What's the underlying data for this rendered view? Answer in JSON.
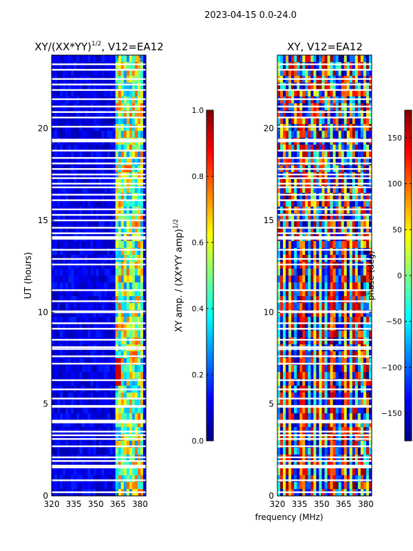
{
  "figure": {
    "suptitle": "2023-04-15 0.0-24.0"
  },
  "colors": {
    "flag": "#ffffff",
    "frame": "#000000",
    "jet": [
      "#00007f",
      "#0000ff",
      "#007fff",
      "#00ffff",
      "#7fff7f",
      "#ffff00",
      "#ff7f00",
      "#ff0000",
      "#7f0000"
    ]
  },
  "chart_data": [
    {
      "type": "heatmap",
      "title_main": "XY/(XX*YY)",
      "title_sup": "1/2",
      "title_rest": ", V12=EA12",
      "xlabel": "",
      "ylabel": "UT (hours)",
      "xlim": [
        320,
        384
      ],
      "ylim": [
        0,
        24
      ],
      "xticks": [
        320,
        335,
        350,
        365,
        380
      ],
      "yticks": [
        0,
        5,
        10,
        15,
        20
      ],
      "colorbar": {
        "label_main": "XY amp. / (XX*YY amp)",
        "label_sup": "1/2",
        "range": [
          0.0,
          1.0
        ],
        "ticks": [
          "0.0",
          "0.2",
          "0.4",
          "0.6",
          "0.8",
          "1.0"
        ]
      },
      "description_values": {
        "background_level": 0.05,
        "bright_band_mhz": [
          363,
          382
        ],
        "bright_band_level": 0.55
      }
    },
    {
      "type": "heatmap",
      "title": "XY, V12=EA12",
      "xlabel": "frequency (MHz)",
      "ylabel": "",
      "xlim": [
        320,
        384
      ],
      "ylim": [
        0,
        24
      ],
      "xticks": [
        320,
        335,
        350,
        365,
        380
      ],
      "yticks": [
        0,
        5,
        10,
        15,
        20
      ],
      "colorbar": {
        "label": "phase (deg)",
        "range": [
          -180,
          180
        ],
        "ticks": [
          "−150",
          "−100",
          "−50",
          "0",
          "50",
          "100",
          "150"
        ]
      }
    }
  ],
  "flagged_hours": [
    0.2,
    0.85,
    1.55,
    1.6,
    1.65,
    1.9,
    2.1,
    2.7,
    3.1,
    3.3,
    3.5,
    4.0,
    4.05,
    4.1,
    4.85,
    4.9,
    5.3,
    5.8,
    6.3,
    7.2,
    7.6,
    8.0,
    8.1,
    8.5,
    9.1,
    9.4,
    10.0,
    10.05,
    10.6,
    11.2,
    12.6,
    12.9,
    13.4,
    14.0,
    14.05,
    14.1,
    14.3,
    14.6,
    15.0,
    15.3,
    15.6,
    16.1,
    16.4,
    16.8,
    17.0,
    17.3,
    17.5,
    17.8,
    18.1,
    18.4,
    18.8,
    19.3,
    19.35,
    19.4,
    20.1,
    20.6,
    20.9,
    21.2,
    21.6,
    22.1,
    22.4,
    22.7,
    23.2,
    23.5
  ]
}
